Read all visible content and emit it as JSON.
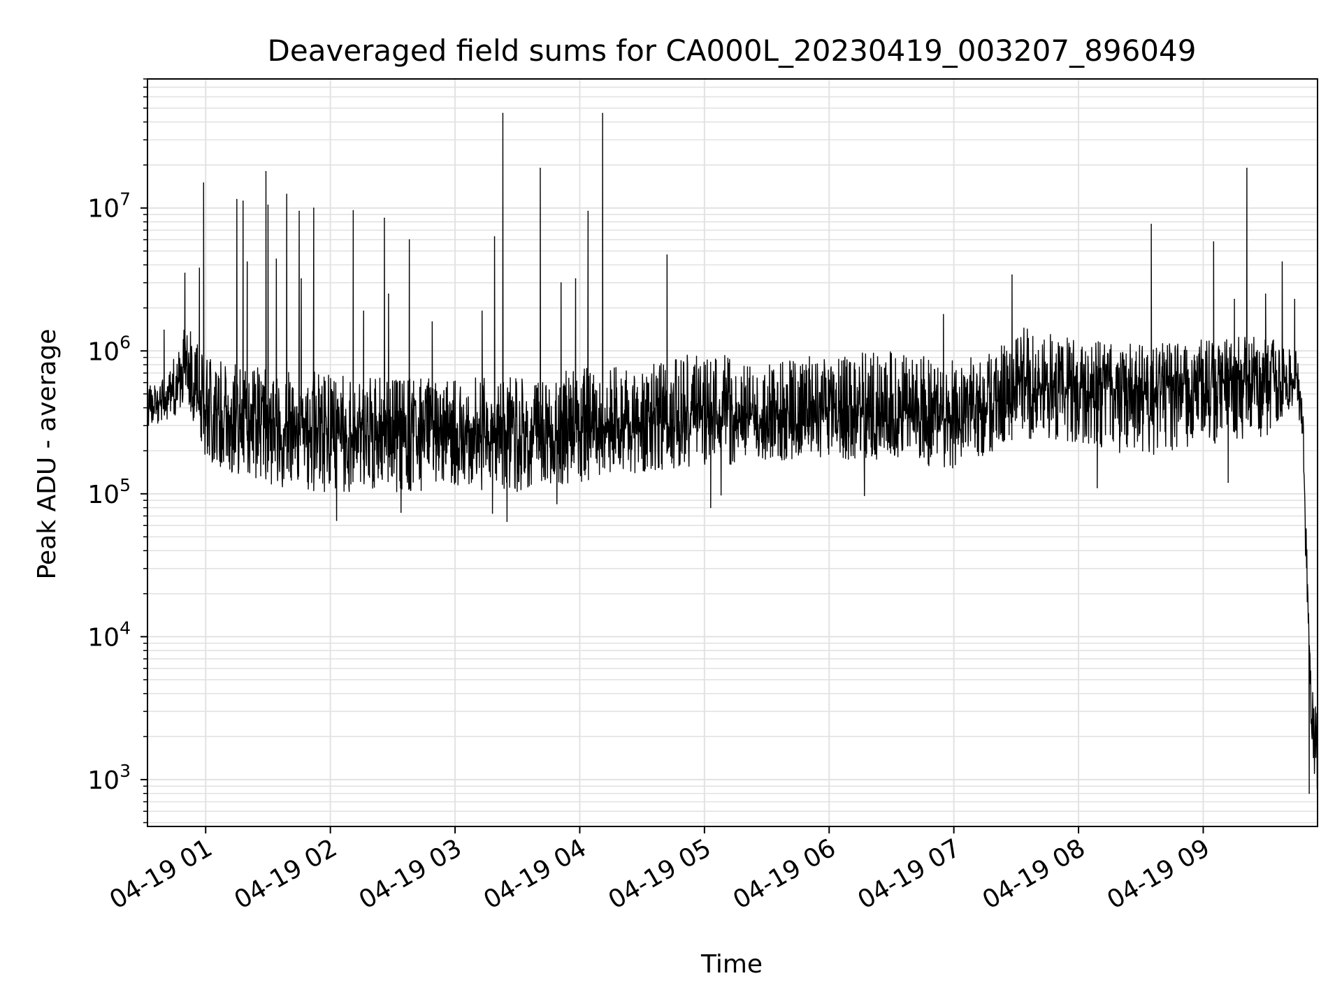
{
  "chart_data": {
    "type": "line",
    "title": "Deaveraged field sums for CA000L_20230419_003207_896049",
    "xlabel": "Time",
    "ylabel": "Peak ADU - average",
    "y_scale": "log",
    "ylim": [
      470,
      80000000
    ],
    "xlim": [
      "2023-04-19 00:32",
      "2023-04-19 09:55"
    ],
    "grid": true,
    "legend": "none",
    "line_color": "#000000",
    "x_ticks": [
      {
        "value": "2023-04-19 01:00",
        "label": "04-19 01"
      },
      {
        "value": "2023-04-19 02:00",
        "label": "04-19 02"
      },
      {
        "value": "2023-04-19 03:00",
        "label": "04-19 03"
      },
      {
        "value": "2023-04-19 04:00",
        "label": "04-19 04"
      },
      {
        "value": "2023-04-19 05:00",
        "label": "04-19 05"
      },
      {
        "value": "2023-04-19 06:00",
        "label": "04-19 06"
      },
      {
        "value": "2023-04-19 07:00",
        "label": "04-19 07"
      },
      {
        "value": "2023-04-19 08:00",
        "label": "04-19 08"
      },
      {
        "value": "2023-04-19 09:00",
        "label": "04-19 09"
      }
    ],
    "y_ticks": [
      {
        "value": 1000,
        "base": "10",
        "exp": "3"
      },
      {
        "value": 10000,
        "base": "10",
        "exp": "4"
      },
      {
        "value": 100000,
        "base": "10",
        "exp": "5"
      },
      {
        "value": 1000000,
        "base": "10",
        "exp": "6"
      },
      {
        "value": 10000000,
        "base": "10",
        "exp": "7"
      }
    ],
    "series_envelope": {
      "x": [
        "2023-04-19 00:32",
        "2023-04-19 00:40",
        "2023-04-19 00:45",
        "2023-04-19 00:50",
        "2023-04-19 01:00",
        "2023-04-19 01:30",
        "2023-04-19 02:00",
        "2023-04-19 02:30",
        "2023-04-19 03:00",
        "2023-04-19 03:30",
        "2023-04-19 04:00",
        "2023-04-19 04:30",
        "2023-04-19 05:00",
        "2023-04-19 05:30",
        "2023-04-19 06:00",
        "2023-04-19 06:30",
        "2023-04-19 07:00",
        "2023-04-19 07:20",
        "2023-04-19 07:30",
        "2023-04-19 08:00",
        "2023-04-19 08:30",
        "2023-04-19 09:00",
        "2023-04-19 09:30",
        "2023-04-19 09:45",
        "2023-04-19 09:48",
        "2023-04-19 09:50",
        "2023-04-19 09:52",
        "2023-04-19 09:55"
      ],
      "median": [
        400000,
        450000,
        500000,
        800000,
        400000,
        300000,
        260000,
        250000,
        260000,
        250000,
        270000,
        290000,
        350000,
        330000,
        370000,
        350000,
        320000,
        400000,
        600000,
        560000,
        530000,
        600000,
        610000,
        650000,
        300000,
        20000,
        2500,
        1800
      ],
      "low": [
        290000,
        320000,
        350000,
        450000,
        170000,
        110000,
        100000,
        100000,
        110000,
        100000,
        120000,
        140000,
        150000,
        170000,
        180000,
        160000,
        150000,
        200000,
        250000,
        220000,
        180000,
        220000,
        250000,
        450000,
        200000,
        10000,
        1200,
        800
      ],
      "high": [
        560000,
        650000,
        900000,
        1600000,
        900000,
        750000,
        700000,
        650000,
        650000,
        650000,
        750000,
        800000,
        1000000,
        800000,
        1000000,
        1000000,
        850000,
        1000000,
        1500000,
        1200000,
        1100000,
        1200000,
        1300000,
        1000000,
        400000,
        40000,
        4500,
        3000
      ]
    },
    "spikes": [
      {
        "x": "2023-04-19 00:40",
        "y": 1400000
      },
      {
        "x": "2023-04-19 00:50",
        "y": 3500000
      },
      {
        "x": "2023-04-19 00:57",
        "y": 3800000
      },
      {
        "x": "2023-04-19 00:59",
        "y": 15000000
      },
      {
        "x": "2023-04-19 01:15",
        "y": 11500000
      },
      {
        "x": "2023-04-19 01:18",
        "y": 11200000
      },
      {
        "x": "2023-04-19 01:20",
        "y": 4200000
      },
      {
        "x": "2023-04-19 01:29",
        "y": 18000000
      },
      {
        "x": "2023-04-19 01:30",
        "y": 10500000
      },
      {
        "x": "2023-04-19 01:34",
        "y": 4400000
      },
      {
        "x": "2023-04-19 01:39",
        "y": 12500000
      },
      {
        "x": "2023-04-19 01:45",
        "y": 9500000
      },
      {
        "x": "2023-04-19 01:46",
        "y": 3200000
      },
      {
        "x": "2023-04-19 01:52",
        "y": 10000000
      },
      {
        "x": "2023-04-19 02:11",
        "y": 9600000
      },
      {
        "x": "2023-04-19 02:16",
        "y": 1900000
      },
      {
        "x": "2023-04-19 02:26",
        "y": 8500000
      },
      {
        "x": "2023-04-19 02:28",
        "y": 2500000
      },
      {
        "x": "2023-04-19 02:38",
        "y": 6000000
      },
      {
        "x": "2023-04-19 02:49",
        "y": 1600000
      },
      {
        "x": "2023-04-19 03:13",
        "y": 1900000
      },
      {
        "x": "2023-04-19 03:19",
        "y": 6300000
      },
      {
        "x": "2023-04-19 03:23",
        "y": 46000000
      },
      {
        "x": "2023-04-19 03:41",
        "y": 19000000
      },
      {
        "x": "2023-04-19 03:51",
        "y": 3000000
      },
      {
        "x": "2023-04-19 03:58",
        "y": 3200000
      },
      {
        "x": "2023-04-19 04:04",
        "y": 9500000
      },
      {
        "x": "2023-04-19 04:11",
        "y": 46000000
      },
      {
        "x": "2023-04-19 04:42",
        "y": 4700000
      },
      {
        "x": "2023-04-19 06:55",
        "y": 1800000
      },
      {
        "x": "2023-04-19 07:28",
        "y": 3400000
      },
      {
        "x": "2023-04-19 08:35",
        "y": 7700000
      },
      {
        "x": "2023-04-19 09:05",
        "y": 5800000
      },
      {
        "x": "2023-04-19 09:15",
        "y": 2300000
      },
      {
        "x": "2023-04-19 09:21",
        "y": 19000000
      },
      {
        "x": "2023-04-19 09:30",
        "y": 2500000
      },
      {
        "x": "2023-04-19 09:38",
        "y": 4200000
      },
      {
        "x": "2023-04-19 09:44",
        "y": 2300000
      }
    ],
    "dips": [
      {
        "x": "2023-04-19 02:03",
        "y": 65000
      },
      {
        "x": "2023-04-19 02:34",
        "y": 74000
      },
      {
        "x": "2023-04-19 03:18",
        "y": 73000
      },
      {
        "x": "2023-04-19 03:25",
        "y": 64000
      },
      {
        "x": "2023-04-19 03:49",
        "y": 85000
      },
      {
        "x": "2023-04-19 05:03",
        "y": 80000
      },
      {
        "x": "2023-04-19 05:08",
        "y": 98000
      },
      {
        "x": "2023-04-19 06:17",
        "y": 97000
      },
      {
        "x": "2023-04-19 08:09",
        "y": 110000
      },
      {
        "x": "2023-04-19 09:12",
        "y": 120000
      },
      {
        "x": "2023-04-19 09:51",
        "y": 800
      },
      {
        "x": "2023-04-19 09:55",
        "y": 900
      }
    ]
  }
}
